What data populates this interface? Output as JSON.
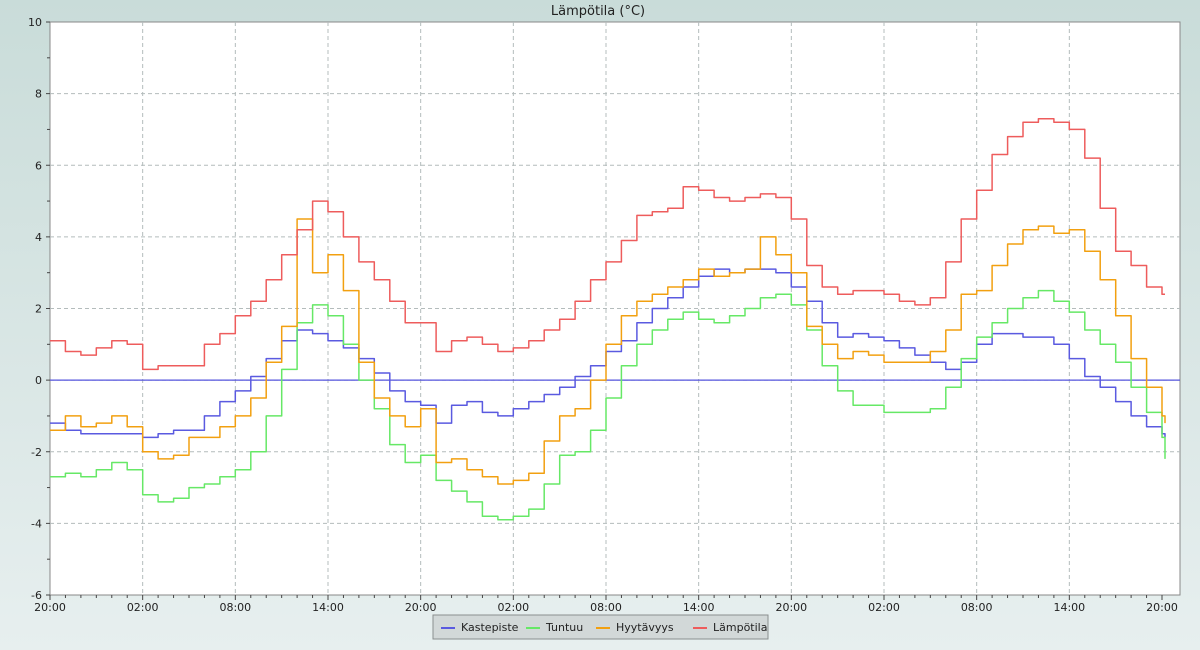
{
  "chart_data": {
    "type": "line",
    "title": "Lämpötila (°C)",
    "xlabel": "",
    "ylabel": "",
    "ylim": [
      -6,
      10
    ],
    "yticks": [
      -6,
      -4,
      -2,
      0,
      2,
      4,
      6,
      8,
      10
    ],
    "xlim": [
      0,
      72
    ],
    "x_tick_labels": [
      "20:00",
      "02:00",
      "08:00",
      "14:00",
      "20:00",
      "02:00",
      "08:00",
      "14:00",
      "20:00",
      "02:00",
      "08:00",
      "14:00",
      "20:00"
    ],
    "x_tick_hours": [
      0,
      6,
      12,
      18,
      24,
      30,
      36,
      42,
      48,
      54,
      60,
      66,
      72
    ],
    "grid": true,
    "legend_position": "bottom-center",
    "zero_line_color": "#5555dd",
    "series": [
      {
        "name": "Kastepiste",
        "color": "#5a5ae0",
        "x": [
          0,
          1,
          2,
          3,
          4,
          5,
          6,
          7,
          8,
          9,
          10,
          11,
          12,
          13,
          14,
          15,
          16,
          17,
          18,
          19,
          20,
          21,
          22,
          23,
          24,
          25,
          26,
          27,
          28,
          29,
          30,
          31,
          32,
          33,
          34,
          35,
          36,
          37,
          38,
          39,
          40,
          41,
          42,
          43,
          44,
          45,
          46,
          47,
          48,
          49,
          50,
          51,
          52,
          53,
          54,
          55,
          56,
          57,
          58,
          59,
          60,
          61,
          62,
          63,
          64,
          65,
          66,
          67,
          68,
          69,
          70,
          71,
          72,
          73
        ],
        "values": [
          -1.2,
          -1.4,
          -1.5,
          -1.5,
          -1.5,
          -1.5,
          -1.6,
          -1.5,
          -1.4,
          -1.4,
          -1.0,
          -0.6,
          -0.3,
          0.1,
          0.6,
          1.1,
          1.4,
          1.3,
          1.1,
          0.9,
          0.6,
          0.2,
          -0.3,
          -0.6,
          -0.7,
          -1.2,
          -0.7,
          -0.6,
          -0.9,
          -1.0,
          -0.8,
          -0.6,
          -0.4,
          -0.2,
          0.1,
          0.4,
          0.8,
          1.1,
          1.6,
          2.0,
          2.3,
          2.6,
          2.9,
          3.1,
          3.0,
          3.1,
          3.1,
          3.0,
          2.6,
          2.2,
          1.6,
          1.2,
          1.3,
          1.2,
          1.1,
          0.9,
          0.7,
          0.5,
          0.3,
          0.5,
          1.0,
          1.3,
          1.3,
          1.2,
          1.2,
          1.0,
          0.6,
          0.1,
          -0.2,
          -0.6,
          -1.0,
          -1.3,
          -1.5,
          -1.6
        ]
      },
      {
        "name": "Tuntuu",
        "color": "#66e866",
        "x": [
          0,
          1,
          2,
          3,
          4,
          5,
          6,
          7,
          8,
          9,
          10,
          11,
          12,
          13,
          14,
          15,
          16,
          17,
          18,
          19,
          20,
          21,
          22,
          23,
          24,
          25,
          26,
          27,
          28,
          29,
          30,
          31,
          32,
          33,
          34,
          35,
          36,
          37,
          38,
          39,
          40,
          41,
          42,
          43,
          44,
          45,
          46,
          47,
          48,
          49,
          50,
          51,
          52,
          53,
          54,
          55,
          56,
          57,
          58,
          59,
          60,
          61,
          62,
          63,
          64,
          65,
          66,
          67,
          68,
          69,
          70,
          71,
          72,
          73
        ],
        "values": [
          -2.7,
          -2.6,
          -2.7,
          -2.5,
          -2.3,
          -2.5,
          -3.2,
          -3.4,
          -3.3,
          -3.0,
          -2.9,
          -2.7,
          -2.5,
          -2.0,
          -1.0,
          0.3,
          1.6,
          2.1,
          1.8,
          1.0,
          0.0,
          -0.8,
          -1.8,
          -2.3,
          -2.1,
          -2.8,
          -3.1,
          -3.4,
          -3.8,
          -3.9,
          -3.8,
          -3.6,
          -2.9,
          -2.1,
          -2.0,
          -1.4,
          -0.5,
          0.4,
          1.0,
          1.4,
          1.7,
          1.9,
          1.7,
          1.6,
          1.8,
          2.0,
          2.3,
          2.4,
          2.1,
          1.4,
          0.4,
          -0.3,
          -0.7,
          -0.7,
          -0.9,
          -0.9,
          -0.9,
          -0.8,
          -0.2,
          0.6,
          1.2,
          1.6,
          2.0,
          2.3,
          2.5,
          2.2,
          1.9,
          1.4,
          1.0,
          0.5,
          -0.2,
          -0.9,
          -1.6,
          -2.2
        ]
      },
      {
        "name": "Hyytävyys",
        "color": "#f2a010",
        "x": [
          0,
          1,
          2,
          3,
          4,
          5,
          6,
          7,
          8,
          9,
          10,
          11,
          12,
          13,
          14,
          15,
          16,
          17,
          18,
          19,
          20,
          21,
          22,
          23,
          24,
          25,
          26,
          27,
          28,
          29,
          30,
          31,
          32,
          33,
          34,
          35,
          36,
          37,
          38,
          39,
          40,
          41,
          42,
          43,
          44,
          45,
          46,
          47,
          48,
          49,
          50,
          51,
          52,
          53,
          54,
          55,
          56,
          57,
          58,
          59,
          60,
          61,
          62,
          63,
          64,
          65,
          66,
          67,
          68,
          69,
          70,
          71,
          72,
          73
        ],
        "values": [
          -1.4,
          -1.0,
          -1.3,
          -1.2,
          -1.0,
          -1.3,
          -2.0,
          -2.2,
          -2.1,
          -1.6,
          -1.6,
          -1.3,
          -1.0,
          -0.5,
          0.5,
          1.5,
          4.5,
          3.0,
          3.5,
          2.5,
          0.5,
          -0.5,
          -1.0,
          -1.3,
          -0.8,
          -2.3,
          -2.2,
          -2.5,
          -2.7,
          -2.9,
          -2.8,
          -2.6,
          -1.7,
          -1.0,
          -0.8,
          0.0,
          1.0,
          1.8,
          2.2,
          2.4,
          2.6,
          2.8,
          3.1,
          2.9,
          3.0,
          3.1,
          4.0,
          3.5,
          3.0,
          1.5,
          1.0,
          0.6,
          0.8,
          0.7,
          0.5,
          0.5,
          0.5,
          0.8,
          1.4,
          2.4,
          2.5,
          3.2,
          3.8,
          4.2,
          4.3,
          4.1,
          4.2,
          3.6,
          2.8,
          1.8,
          0.6,
          -0.2,
          -1.0,
          -1.2
        ]
      },
      {
        "name": "Lämpötila",
        "color": "#ee5c5c",
        "x": [
          0,
          1,
          2,
          3,
          4,
          5,
          6,
          7,
          8,
          9,
          10,
          11,
          12,
          13,
          14,
          15,
          16,
          17,
          18,
          19,
          20,
          21,
          22,
          23,
          24,
          25,
          26,
          27,
          28,
          29,
          30,
          31,
          32,
          33,
          34,
          35,
          36,
          37,
          38,
          39,
          40,
          41,
          42,
          43,
          44,
          45,
          46,
          47,
          48,
          49,
          50,
          51,
          52,
          53,
          54,
          55,
          56,
          57,
          58,
          59,
          60,
          61,
          62,
          63,
          64,
          65,
          66,
          67,
          68,
          69,
          70,
          71,
          72,
          73
        ],
        "values": [
          1.1,
          0.8,
          0.7,
          0.9,
          1.1,
          1.0,
          0.3,
          0.4,
          0.4,
          0.4,
          1.0,
          1.3,
          1.8,
          2.2,
          2.8,
          3.5,
          4.2,
          5.0,
          4.7,
          4.0,
          3.3,
          2.8,
          2.2,
          1.6,
          1.6,
          0.8,
          1.1,
          1.2,
          1.0,
          0.8,
          0.9,
          1.1,
          1.4,
          1.7,
          2.2,
          2.8,
          3.3,
          3.9,
          4.6,
          4.7,
          4.8,
          5.4,
          5.3,
          5.1,
          5.0,
          5.1,
          5.2,
          5.1,
          4.5,
          3.2,
          2.6,
          2.4,
          2.5,
          2.5,
          2.4,
          2.2,
          2.1,
          2.3,
          3.3,
          4.5,
          5.3,
          6.3,
          6.8,
          7.2,
          7.3,
          7.2,
          7.0,
          6.2,
          4.8,
          3.6,
          3.2,
          2.6,
          2.4,
          2.4
        ]
      }
    ]
  }
}
